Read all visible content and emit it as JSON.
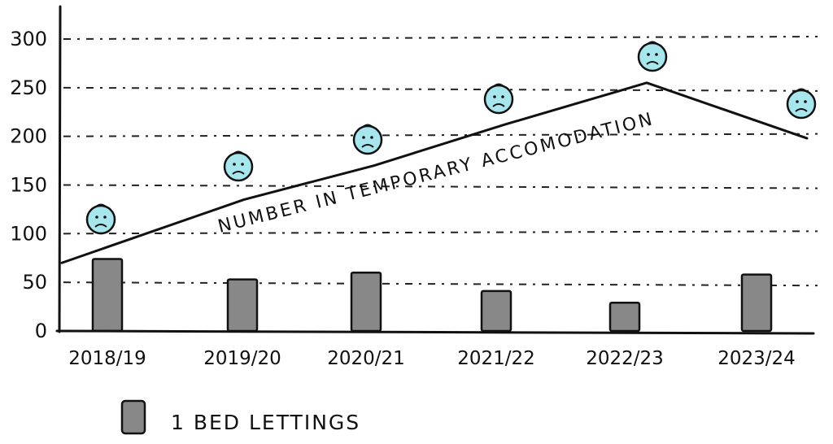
{
  "chart_data": {
    "type": "bar",
    "categories": [
      "2018/19",
      "2019/20",
      "2020/21",
      "2021/22",
      "2022/23",
      "2023/24"
    ],
    "series": [
      {
        "name": "1 BED LETTINGS",
        "kind": "bar",
        "values": [
          74,
          53,
          60,
          41,
          29,
          58
        ],
        "color": "#888888"
      },
      {
        "name": "NUMBER IN TEMPORARY ACCOMODATION",
        "kind": "line",
        "values": [
          70,
          135,
          170,
          212,
          255,
          198
        ],
        "color": "#111111"
      }
    ],
    "xlabel": "",
    "ylabel": "",
    "ylim": [
      0,
      300
    ],
    "yticks": [
      0,
      50,
      100,
      150,
      200,
      250,
      300
    ],
    "grid": true,
    "legend": "bottom-left",
    "annotation": "face icons above the line",
    "face_color": "#a8e6ee"
  }
}
